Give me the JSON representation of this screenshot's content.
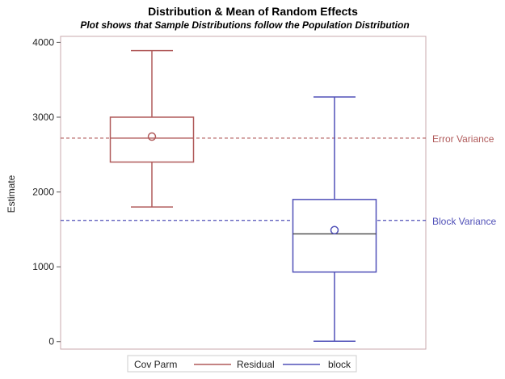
{
  "chart_data": {
    "type": "box",
    "title": "Distribution & Mean of Random Effects",
    "subtitle": "Plot shows that Sample Distributions follow the Population Distribution",
    "ylabel": "Estimate",
    "xlabel": "",
    "ylim": [
      -100,
      4080
    ],
    "yticks": [
      0,
      1000,
      2000,
      3000,
      4000
    ],
    "grid": false,
    "series": [
      {
        "name": "Residual",
        "color": "#b05a5a",
        "min": 1800,
        "q1": 2400,
        "median": 2720,
        "q3": 3000,
        "max": 3890,
        "mean": 2740
      },
      {
        "name": "block",
        "color": "#5050b8",
        "min": 5,
        "q1": 930,
        "median": 1440,
        "q3": 1900,
        "max": 3270,
        "mean": 1490
      }
    ],
    "reference_lines": [
      {
        "label": "Error Variance",
        "value": 2720,
        "color": "#b05a5a"
      },
      {
        "label": "Block Variance",
        "value": 1620,
        "color": "#5050b8"
      }
    ],
    "legend": {
      "title": "Cov Parm",
      "position": "bottom",
      "entries": [
        {
          "label": "Residual",
          "color": "#b05a5a"
        },
        {
          "label": "block",
          "color": "#5050b8"
        }
      ]
    }
  }
}
